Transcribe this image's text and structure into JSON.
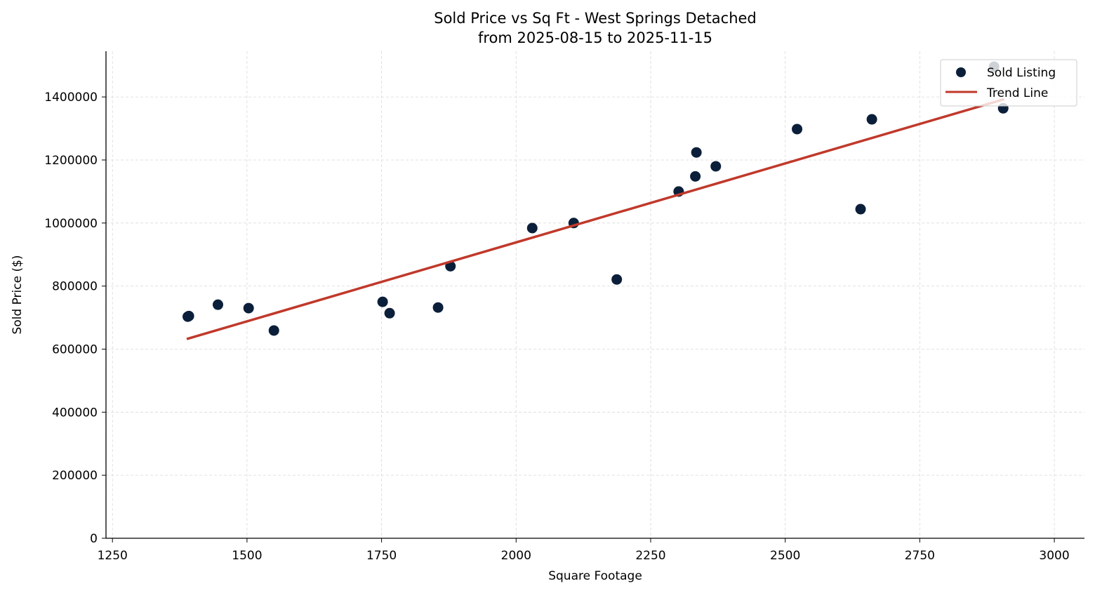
{
  "chart_data": {
    "type": "scatter",
    "title": "Sold Price vs Sq Ft - West Springs Detached",
    "subtitle": "from 2025-08-15 to 2025-11-15",
    "xlabel": "Square Footage",
    "ylabel": "Sold Price ($)",
    "xlim": [
      1238,
      3056
    ],
    "ylim": [
      0,
      1545000
    ],
    "xticks": [
      1250,
      1500,
      1750,
      2000,
      2250,
      2500,
      2750,
      3000
    ],
    "yticks": [
      0,
      200000,
      400000,
      600000,
      800000,
      1000000,
      1200000,
      1400000
    ],
    "grid": true,
    "legend_position": "top-right",
    "series": [
      {
        "name": "Sold Listing",
        "type": "scatter",
        "color": "#0b1f3a",
        "points": [
          [
            1390,
            703000
          ],
          [
            1392,
            705000
          ],
          [
            1446,
            741000
          ],
          [
            1503,
            730000
          ],
          [
            1550,
            659000
          ],
          [
            1752,
            750000
          ],
          [
            1765,
            714000
          ],
          [
            1855,
            732000
          ],
          [
            1878,
            863000
          ],
          [
            2030,
            984000
          ],
          [
            2107,
            1000000
          ],
          [
            2187,
            821000
          ],
          [
            2302,
            1100000
          ],
          [
            2333,
            1148000
          ],
          [
            2335,
            1224000
          ],
          [
            2371,
            1180000
          ],
          [
            2522,
            1298000
          ],
          [
            2640,
            1044000
          ],
          [
            2661,
            1329000
          ],
          [
            2888,
            1496000
          ],
          [
            2905,
            1364000
          ]
        ]
      },
      {
        "name": "Trend Line",
        "type": "line",
        "color": "#c0392b",
        "points": [
          [
            1388,
            632000
          ],
          [
            2907,
            1393000
          ]
        ]
      }
    ]
  }
}
